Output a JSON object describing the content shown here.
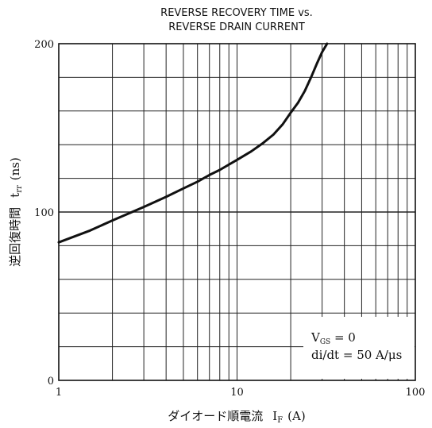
{
  "chart_data": {
    "type": "line",
    "title_lines": [
      "REVERSE RECOVERY TIME vs.",
      "REVERSE DRAIN CURRENT"
    ],
    "xlabel": "ダイオード順電流",
    "xlabel_symbol": "I",
    "xlabel_sub": "F",
    "xlabel_unit": "(A)",
    "ylabel": "逆回復時間",
    "ylabel_symbol": "t",
    "ylabel_sub": "rr",
    "ylabel_unit": "(ns)",
    "x_scale": "log",
    "xlim": [
      1,
      100
    ],
    "ylim": [
      0,
      200
    ],
    "x_ticks": [
      {
        "value": 1,
        "label": "1"
      },
      {
        "value": 10,
        "label": "10"
      },
      {
        "value": 100,
        "label": "100"
      }
    ],
    "y_ticks": [
      {
        "value": 0,
        "label": "0"
      },
      {
        "value": 100,
        "label": "100"
      },
      {
        "value": 200,
        "label": "200"
      }
    ],
    "grid": true,
    "series": [
      {
        "x": [
          1,
          1.5,
          2,
          3,
          4,
          5,
          6,
          7,
          8,
          10,
          12,
          14,
          16,
          18,
          20,
          22,
          24,
          26,
          28,
          30,
          32
        ],
        "y": [
          82,
          89,
          95,
          103,
          109,
          114,
          118,
          122,
          125,
          131,
          136,
          141,
          146,
          152,
          159,
          165,
          172,
          180,
          188,
          195,
          201
        ]
      }
    ],
    "annotation_lines": [
      "V_GS = 0",
      "di/dt = 50 A/μs"
    ]
  }
}
